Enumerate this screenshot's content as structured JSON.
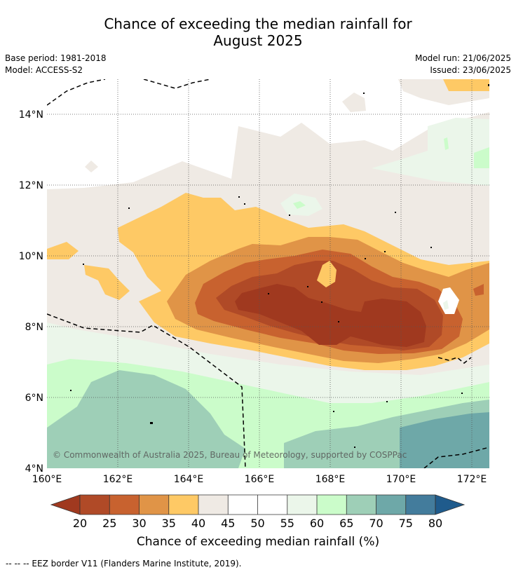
{
  "title_line1": "Chance of exceeding the median rainfall for",
  "title_line2": "August 2025",
  "base_period": "Base period: 1981-2018",
  "model": "Model: ACCESS-S2",
  "model_run": "Model run: 21/06/2025",
  "issued": "Issued: 23/06/2025",
  "copyright": "© Commonwealth of Australia 2025, Bureau of Meteorology, supported by COSPPac",
  "axes": {
    "lat_labels": [
      "14°N",
      "12°N",
      "10°N",
      "8°N",
      "6°N",
      "4°N"
    ],
    "lon_labels": [
      "160°E",
      "162°E",
      "164°E",
      "166°E",
      "168°E",
      "170°E",
      "172°E"
    ]
  },
  "colorbar": {
    "label": "Chance of exceeding median rainfall (%)",
    "ticks": [
      "20",
      "25",
      "30",
      "35",
      "40",
      "45",
      "50",
      "55",
      "60",
      "65",
      "70",
      "75",
      "80"
    ],
    "colors": {
      "below20": "#a0391f",
      "c20_25": "#b04a27",
      "c25_30": "#c8622f",
      "c30_35": "#e09447",
      "c35_40": "#fec965",
      "c40_45": "#efeae4",
      "c45_50": "#ffffff",
      "c50_55": "#ffffff",
      "c55_60": "#ebf6ea",
      "c60_65": "#cbfcca",
      "c65_70": "#9ecfb7",
      "c70_75": "#6ea8a8",
      "c75_80": "#437c9c",
      "above80": "#1f5b8c"
    }
  },
  "footer": "-- -- -- EEZ border V11 (Flanders Marine Institute, 2019)."
}
